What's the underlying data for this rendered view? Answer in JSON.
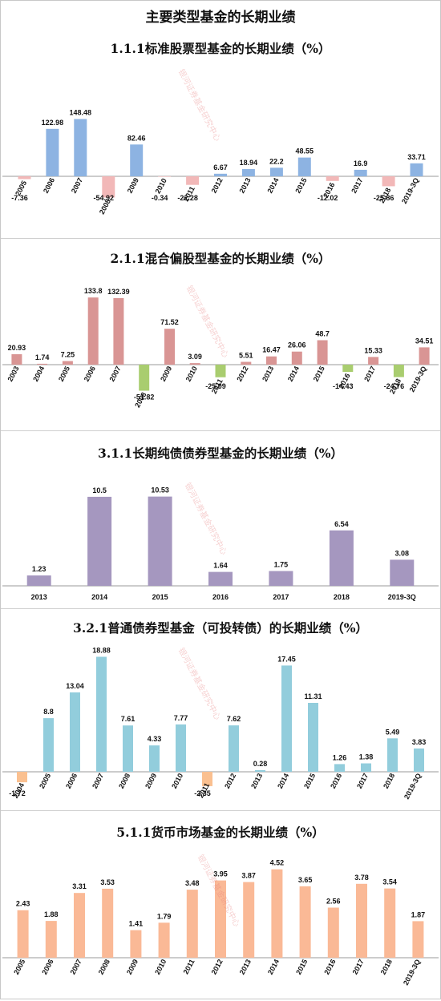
{
  "page": {
    "title": "主要类型基金的长期业绩"
  },
  "watermark": "银河证券基金研究中心",
  "chart_data": [
    {
      "type": "bar",
      "title": "1.1.1标准股票型基金的长期业绩（%）",
      "categories": [
        "2005",
        "2006",
        "2007",
        "2008",
        "2009",
        "2010",
        "2011",
        "2012",
        "2013",
        "2014",
        "2015",
        "2016",
        "2017",
        "2018",
        "2019-3Q"
      ],
      "values": [
        -7.36,
        122.98,
        148.48,
        -54.92,
        82.46,
        -0.34,
        -22.28,
        6.67,
        18.94,
        22.2,
        48.55,
        -12.02,
        16.9,
        -25.86,
        33.71
      ],
      "value_labels": [
        "-7.36",
        "122.98",
        "148.48",
        "-54.92",
        "82.46",
        "-0.34",
        "-22.28",
        "6.67",
        "18.94",
        "22.2",
        "48.55",
        "-12.02",
        "16.9",
        "-25.86",
        "33.71"
      ],
      "colors": {
        "positive": "#8db3e2",
        "negative": "#f2b8b8"
      },
      "ylim": [
        -60,
        160
      ],
      "grid": false,
      "legend": "none",
      "rotated_ticks": true
    },
    {
      "type": "bar",
      "title": "2.1.1混合偏股型基金的长期业绩（%）",
      "categories": [
        "2003",
        "2004",
        "2005",
        "2006",
        "2007",
        "2008",
        "2009",
        "2010",
        "2011",
        "2012",
        "2013",
        "2014",
        "2015",
        "2016",
        "2017",
        "2018",
        "2019-3Q"
      ],
      "values": [
        20.93,
        1.74,
        7.25,
        133.8,
        132.39,
        -51.82,
        71.52,
        3.09,
        -25.09,
        5.51,
        16.47,
        26.06,
        48.7,
        -14.43,
        15.33,
        -24.76,
        34.51
      ],
      "value_labels": [
        "20.93",
        "1.74",
        "7.25",
        "133.8",
        "132.39",
        "-51.82",
        "71.52",
        "3.09",
        "-25.09",
        "5.51",
        "16.47",
        "26.06",
        "48.7",
        "-14.43",
        "15.33",
        "-24.76",
        "34.51"
      ],
      "colors": {
        "positive": "#d99594",
        "negative": "#a9cd6f"
      },
      "ylim": [
        -60,
        150
      ],
      "grid": false,
      "legend": "none",
      "rotated_ticks": true
    },
    {
      "type": "bar",
      "title": "3.1.1长期纯债债券型基金的长期业绩（%）",
      "categories": [
        "2013",
        "2014",
        "2015",
        "2016",
        "2017",
        "2018",
        "2019-3Q"
      ],
      "values": [
        1.23,
        10.5,
        10.53,
        1.64,
        1.75,
        6.54,
        3.08
      ],
      "value_labels": [
        "1.23",
        "10.5",
        "10.53",
        "1.64",
        "1.75",
        "6.54",
        "3.08"
      ],
      "colors": {
        "positive": "#a597bf",
        "negative": "#a597bf"
      },
      "ylim": [
        0,
        12
      ],
      "grid": false,
      "legend": "none",
      "rotated_ticks": false
    },
    {
      "type": "bar",
      "title": "3.2.1普通债券型基金（可投转债）的长期业绩（%）",
      "categories": [
        "2004",
        "2005",
        "2006",
        "2007",
        "2008",
        "2009",
        "2010",
        "2011",
        "2012",
        "2013",
        "2014",
        "2015",
        "2016",
        "2017",
        "2018",
        "2019-3Q"
      ],
      "values": [
        -1.72,
        8.8,
        13.04,
        18.88,
        7.61,
        4.33,
        7.77,
        -2.35,
        7.62,
        0.28,
        17.45,
        11.31,
        1.26,
        1.38,
        5.49,
        3.83
      ],
      "value_labels": [
        "-1.72",
        "8.8",
        "13.04",
        "18.88",
        "7.61",
        "4.33",
        "7.77",
        "-2.35",
        "7.62",
        "0.28",
        "17.45",
        "11.31",
        "1.26",
        "1.38",
        "5.49",
        "3.83"
      ],
      "colors": {
        "positive": "#92cddc",
        "negative": "#fac090"
      },
      "ylim": [
        -3,
        20
      ],
      "grid": false,
      "legend": "none",
      "rotated_ticks": true
    },
    {
      "type": "bar",
      "title": "5.1.1货币市场基金的长期业绩（%）",
      "categories": [
        "2005",
        "2006",
        "2007",
        "2008",
        "2009",
        "2010",
        "2011",
        "2012",
        "2013",
        "2014",
        "2015",
        "2016",
        "2017",
        "2018",
        "2019-3Q"
      ],
      "values": [
        2.43,
        1.88,
        3.31,
        3.53,
        1.41,
        1.79,
        3.48,
        3.95,
        3.87,
        4.52,
        3.65,
        2.56,
        3.78,
        3.54,
        1.87
      ],
      "value_labels": [
        "2.43",
        "1.88",
        "3.31",
        "3.53",
        "1.41",
        "1.79",
        "3.48",
        "3.95",
        "3.87",
        "4.52",
        "3.65",
        "2.56",
        "3.78",
        "3.54",
        "1.87"
      ],
      "colors": {
        "positive": "#fab996",
        "negative": "#fab996"
      },
      "ylim": [
        0,
        5
      ],
      "grid": false,
      "legend": "none",
      "rotated_ticks": true
    }
  ]
}
